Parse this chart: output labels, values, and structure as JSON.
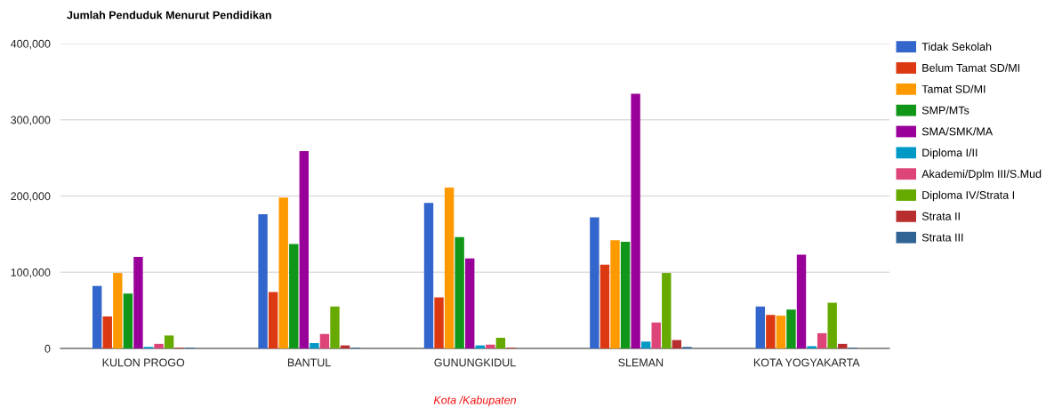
{
  "chart_data": {
    "type": "bar",
    "title": "Jumlah Penduduk Menurut Pendidikan",
    "xlabel": "Kota /Kabupaten",
    "categories": [
      "KULON PROGO",
      "BANTUL",
      "GUNUNGKIDUL",
      "SLEMAN",
      "KOTA YOGYAKARTA"
    ],
    "series": [
      {
        "name": "Tidak Sekolah",
        "color": "#3366cc",
        "values": [
          82000,
          176000,
          191000,
          172000,
          55000
        ]
      },
      {
        "name": "Belum Tamat SD/MI",
        "color": "#dc3912",
        "values": [
          42000,
          74000,
          67000,
          110000,
          44000
        ]
      },
      {
        "name": "Tamat SD/MI",
        "color": "#ff9900",
        "values": [
          99000,
          198000,
          211000,
          142000,
          43000
        ]
      },
      {
        "name": "SMP/MTs",
        "color": "#109618",
        "values": [
          72000,
          137000,
          146000,
          140000,
          51000
        ]
      },
      {
        "name": "SMA/SMK/MA",
        "color": "#990099",
        "values": [
          120000,
          259000,
          118000,
          334000,
          123000
        ]
      },
      {
        "name": "Diploma I/II",
        "color": "#0099c6",
        "values": [
          2000,
          7000,
          4000,
          9000,
          3000
        ]
      },
      {
        "name": "Akademi/Dplm III/S.Mud",
        "color": "#dd4477",
        "values": [
          6000,
          19000,
          5000,
          34000,
          20000
        ]
      },
      {
        "name": "Diploma IV/Strata I",
        "color": "#66aa00",
        "values": [
          17000,
          55000,
          14000,
          99000,
          60000
        ]
      },
      {
        "name": "Strata II",
        "color": "#b82e2e",
        "values": [
          1000,
          4000,
          1000,
          11000,
          6000
        ]
      },
      {
        "name": "Strata III",
        "color": "#316395",
        "values": [
          1000,
          1000,
          0,
          2000,
          1000
        ]
      }
    ],
    "ylim": [
      0,
      400000
    ],
    "yticks": [
      0,
      {
        "value": 100000,
        "label": "100,000"
      },
      {
        "value": 200000,
        "label": "200,000"
      },
      {
        "value": 300000,
        "label": "300,000"
      },
      {
        "value": 400000,
        "label": "400,000"
      }
    ],
    "grid": "y",
    "legend": "right"
  }
}
